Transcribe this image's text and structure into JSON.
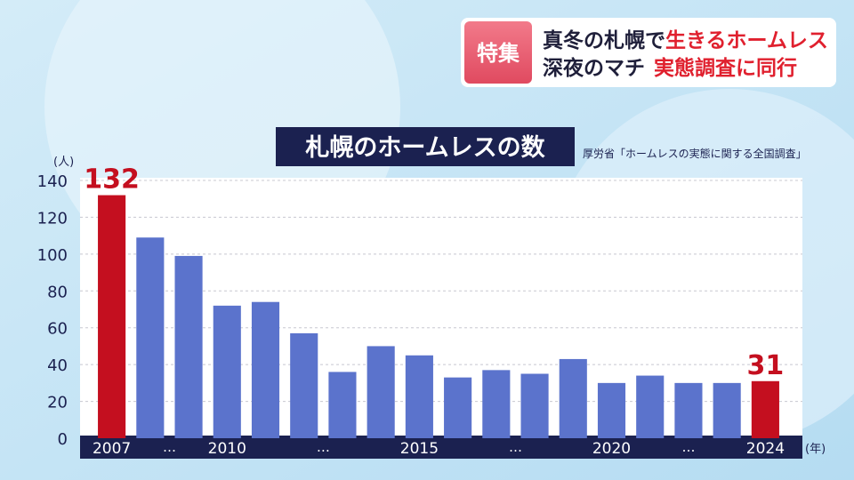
{
  "header": {
    "badge": "特集",
    "line1": [
      "真冬の札幌で",
      "生きるホームレス"
    ],
    "line2": [
      "深夜のマチ",
      "実態調査に同行"
    ]
  },
  "chart_data": {
    "type": "bar",
    "title": "札幌のホームレスの数",
    "source": "厚労省「ホームレスの実態に関する全国調査」",
    "y_unit": "(人)",
    "x_unit": "(年)",
    "categories": [
      "2007",
      null,
      null,
      "2010",
      null,
      null,
      null,
      null,
      "2015",
      null,
      null,
      null,
      null,
      "2020",
      null,
      null,
      null,
      "2024"
    ],
    "gap_labels": [
      "…",
      "…",
      "…",
      "…"
    ],
    "values": [
      132,
      109,
      99,
      72,
      74,
      57,
      36,
      50,
      45,
      33,
      37,
      35,
      43,
      30,
      34,
      30,
      30,
      31
    ],
    "value_labels": [
      "132",
      null,
      null,
      null,
      null,
      null,
      null,
      null,
      null,
      null,
      null,
      null,
      null,
      null,
      null,
      null,
      null,
      "31"
    ],
    "colors": [
      "#c40f1f",
      "#5b73cc",
      "#5b73cc",
      "#5b73cc",
      "#5b73cc",
      "#5b73cc",
      "#5b73cc",
      "#5b73cc",
      "#5b73cc",
      "#5b73cc",
      "#5b73cc",
      "#5b73cc",
      "#5b73cc",
      "#5b73cc",
      "#5b73cc",
      "#5b73cc",
      "#5b73cc",
      "#c40f1f"
    ],
    "ylim": [
      0,
      140
    ],
    "yticks": [
      0,
      20,
      40,
      60,
      80,
      100,
      120,
      140
    ],
    "grid": true
  }
}
